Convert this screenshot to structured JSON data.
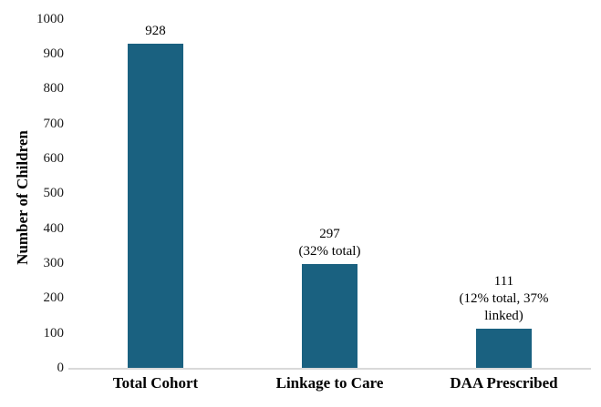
{
  "chart_data": {
    "type": "bar",
    "title": "",
    "xlabel": "",
    "ylabel": "Number of Children",
    "categories": [
      "Total Cohort",
      "Linkage to Care",
      "DAA Prescribed"
    ],
    "values": [
      928,
      297,
      111
    ],
    "annotations": [
      [
        "928"
      ],
      [
        "297",
        "(32% total)"
      ],
      [
        "111",
        "(12% total, 37%",
        "linked)"
      ]
    ],
    "ylim": [
      0,
      1000
    ],
    "ytick_step": 100,
    "yticks": [
      "0",
      "100",
      "200",
      "300",
      "400",
      "500",
      "600",
      "700",
      "800",
      "900",
      "1000"
    ],
    "grid": false,
    "legend_position": "none",
    "bar_color": "#1A6180",
    "baseline_color": "#D9D9D9",
    "text_color": "#000000"
  }
}
